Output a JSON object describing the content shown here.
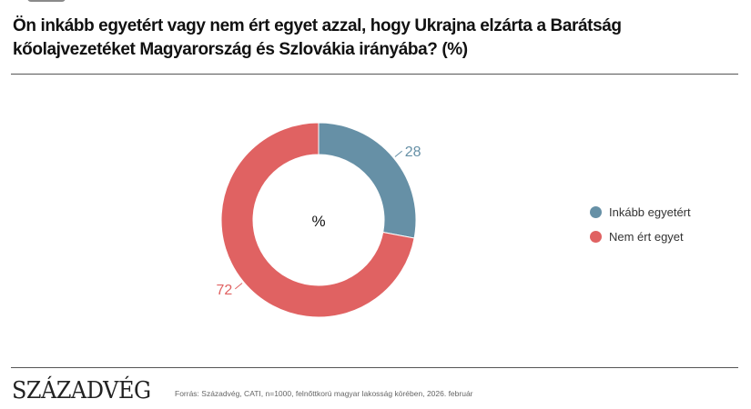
{
  "title": "Ön inkább egyetért vagy nem ért egyet azzal, hogy Ukrajna elzárta a Barátság kőolajvezetéket Magyarország és Szlovákia irányába? (%)",
  "chart_data": {
    "type": "pie",
    "donut": true,
    "center_label": "%",
    "categories": [
      "Inkább egyetért",
      "Nem ért egyet"
    ],
    "values": [
      28,
      72
    ],
    "colors": [
      "#6690a6",
      "#e06262"
    ],
    "legend_placement": "right"
  },
  "footer": {
    "logo": "SZÁZADVÉG",
    "source": "Forrás: Századvég, CATI, n=1000, felnőttkorú magyar lakosság körében, 2026. február"
  }
}
